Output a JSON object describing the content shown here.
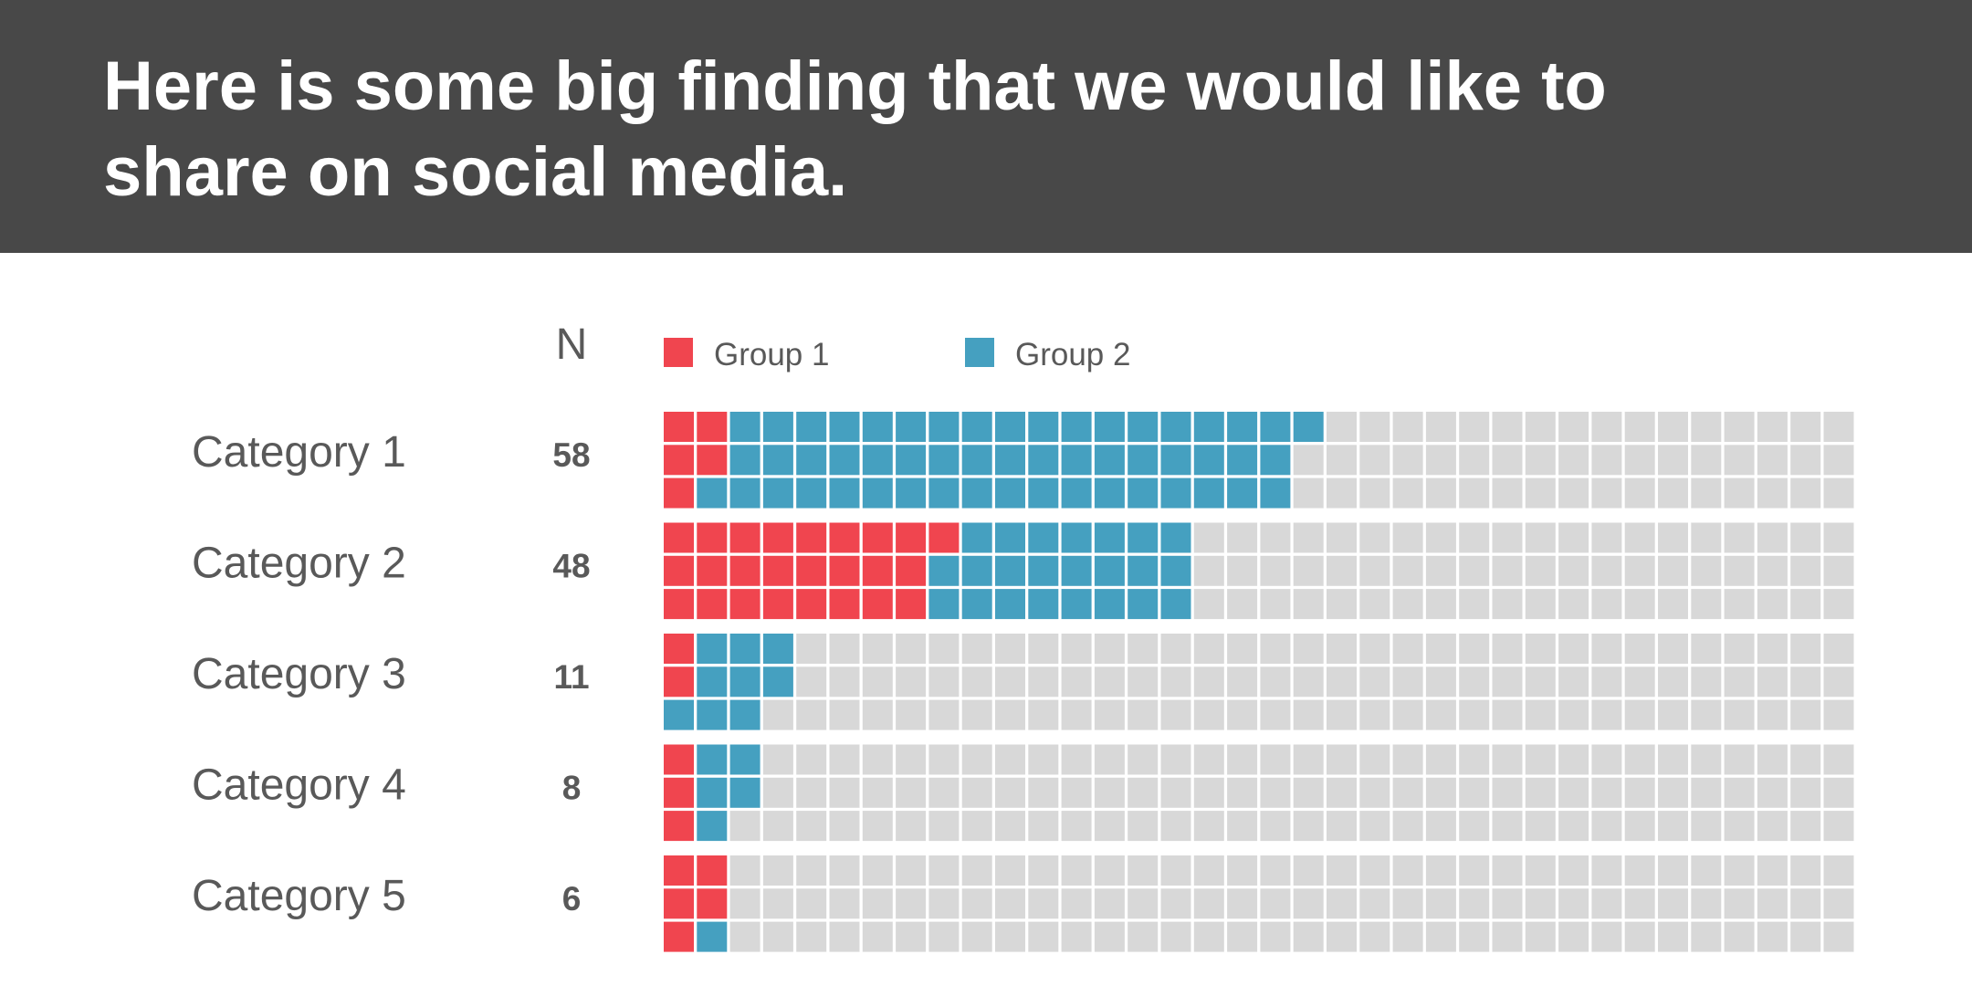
{
  "header": {
    "title": "Here is some big finding that we would like to share on social media."
  },
  "colors": {
    "header_bg": "#484848",
    "group1": "#f0454f",
    "group2": "#45a0c0",
    "empty": "#d8d8d8",
    "text": "#595959"
  },
  "chart_data": {
    "type": "waffle",
    "title": "Here is some big finding that we would like to share on social media.",
    "n_header": "N",
    "legend": [
      {
        "key": "group1",
        "label": "Group 1"
      },
      {
        "key": "group2",
        "label": "Group 2"
      }
    ],
    "grid_columns": 36,
    "grid_rows_per_category": 3,
    "categories": [
      "Category 1",
      "Category 2",
      "Category 3",
      "Category 4",
      "Category 5"
    ],
    "n_values": [
      "58",
      "48",
      "11",
      "8",
      "6"
    ],
    "series": [
      {
        "name": "Group 1",
        "values": [
          5,
          25,
          2,
          3,
          5
        ]
      },
      {
        "name": "Group 2",
        "values": [
          53,
          23,
          9,
          5,
          1
        ]
      }
    ],
    "row_fill": [
      [
        {
          "g1": 2,
          "g2": 18
        },
        {
          "g1": 2,
          "g2": 17
        },
        {
          "g1": 1,
          "g2": 18
        }
      ],
      [
        {
          "g1": 9,
          "g2": 7
        },
        {
          "g1": 8,
          "g2": 8
        },
        {
          "g1": 8,
          "g2": 8
        }
      ],
      [
        {
          "g1": 1,
          "g2": 3
        },
        {
          "g1": 1,
          "g2": 3
        },
        {
          "g1": 0,
          "g2": 3
        }
      ],
      [
        {
          "g1": 1,
          "g2": 2
        },
        {
          "g1": 1,
          "g2": 2
        },
        {
          "g1": 1,
          "g2": 1
        }
      ],
      [
        {
          "g1": 2,
          "g2": 0
        },
        {
          "g1": 2,
          "g2": 0
        },
        {
          "g1": 1,
          "g2": 1
        }
      ]
    ]
  }
}
